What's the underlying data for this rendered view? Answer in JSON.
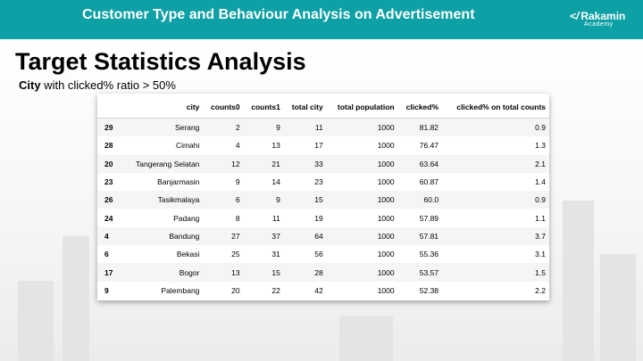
{
  "header": {
    "title": "Customer Type and Behaviour Analysis on Advertisement",
    "logo": {
      "mark": "</",
      "name": "Rakamin",
      "sub": "Academy"
    },
    "colors": {
      "accent": "#0da0a5"
    }
  },
  "slide": {
    "title": "Target Statistics Analysis",
    "subtitle_bold": "City",
    "subtitle_rest": " with clicked% ratio > 50%"
  },
  "table": {
    "columns": [
      "",
      "city",
      "counts0",
      "counts1",
      "total city",
      "total population",
      "clicked%",
      "clicked% on total counts"
    ],
    "rows": [
      [
        "29",
        "Serang",
        "2",
        "9",
        "11",
        "1000",
        "81.82",
        "0.9"
      ],
      [
        "28",
        "Cimahi",
        "4",
        "13",
        "17",
        "1000",
        "76.47",
        "1.3"
      ],
      [
        "20",
        "Tangerang Selatan",
        "12",
        "21",
        "33",
        "1000",
        "63.64",
        "2.1"
      ],
      [
        "23",
        "Banjarmasin",
        "9",
        "14",
        "23",
        "1000",
        "60.87",
        "1.4"
      ],
      [
        "26",
        "Tasikmalaya",
        "6",
        "9",
        "15",
        "1000",
        "60.0",
        "0.9"
      ],
      [
        "24",
        "Padang",
        "8",
        "11",
        "19",
        "1000",
        "57.89",
        "1.1"
      ],
      [
        "4",
        "Bandung",
        "27",
        "37",
        "64",
        "1000",
        "57.81",
        "3.7"
      ],
      [
        "6",
        "Bekasi",
        "25",
        "31",
        "56",
        "1000",
        "55.36",
        "3.1"
      ],
      [
        "17",
        "Bogor",
        "13",
        "15",
        "28",
        "1000",
        "53.57",
        "1.5"
      ],
      [
        "9",
        "Palembang",
        "20",
        "22",
        "42",
        "1000",
        "52.38",
        "2.2"
      ]
    ]
  }
}
